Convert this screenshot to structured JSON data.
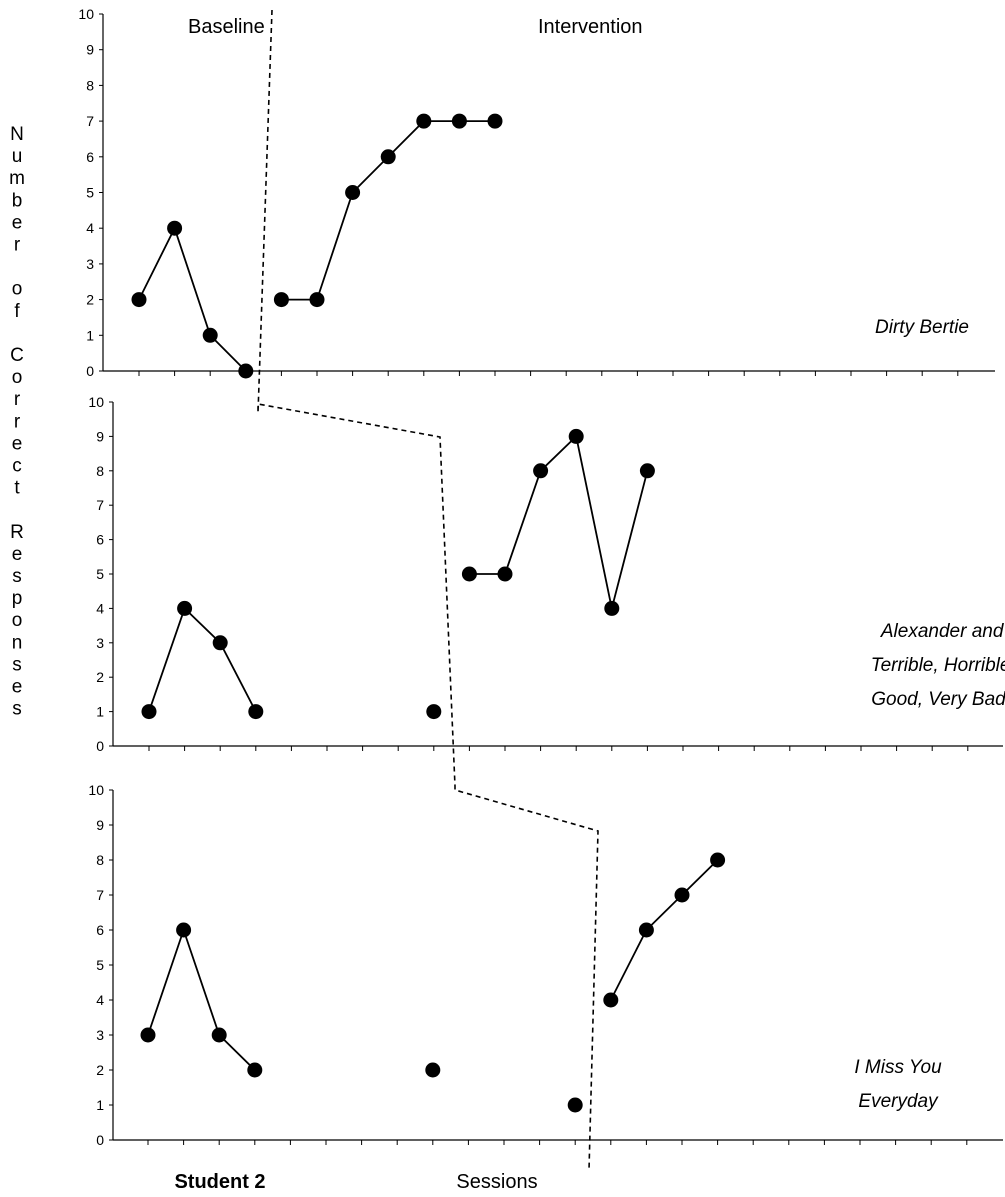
{
  "student_label": "Student 2",
  "xlabel": "Sessions",
  "ylabel": "Number of Correct Responses",
  "phase_labels": {
    "baseline": "Baseline",
    "intervention": "Intervention"
  },
  "chart_data": [
    {
      "type": "line",
      "title": "Dirty Bertie",
      "title_lines": [
        "Dirty Bertie"
      ],
      "ylim": [
        0,
        10
      ],
      "yticks": [
        0,
        1,
        2,
        3,
        4,
        5,
        6,
        7,
        8,
        9,
        10
      ],
      "phase_change_after_session": 4,
      "series": [
        {
          "phase": "baseline",
          "x": [
            1,
            2,
            3,
            4
          ],
          "values": [
            2,
            4,
            1,
            0
          ]
        },
        {
          "phase": "intervention",
          "x": [
            5,
            6,
            7,
            8,
            9,
            10,
            11
          ],
          "values": [
            2,
            2,
            5,
            6,
            7,
            7,
            7
          ]
        }
      ]
    },
    {
      "type": "line",
      "title": "Alexander and the Terrible, Horrible, No Good, Very Bad Day",
      "title_lines": [
        "Alexander and the",
        "Terrible, Horrible, No",
        "Good, Very Bad Day"
      ],
      "ylim": [
        0,
        10
      ],
      "yticks": [
        0,
        1,
        2,
        3,
        4,
        5,
        6,
        7,
        8,
        9,
        10
      ],
      "phase_change_after_session": 9,
      "series": [
        {
          "phase": "baseline",
          "x": [
            1,
            2,
            3,
            4
          ],
          "values": [
            1,
            4,
            3,
            1
          ]
        },
        {
          "phase": "baseline",
          "x": [
            9
          ],
          "values": [
            1
          ]
        },
        {
          "phase": "intervention",
          "x": [
            10,
            11,
            12,
            13,
            14,
            15
          ],
          "values": [
            5,
            5,
            8,
            9,
            4,
            8
          ]
        }
      ]
    },
    {
      "type": "line",
      "title": "I Miss You Everyday",
      "title_lines": [
        "I Miss You",
        "Everyday"
      ],
      "ylim": [
        0,
        10
      ],
      "yticks": [
        0,
        1,
        2,
        3,
        4,
        5,
        6,
        7,
        8,
        9,
        10
      ],
      "phase_change_after_session": 13,
      "series": [
        {
          "phase": "baseline",
          "x": [
            1,
            2,
            3,
            4
          ],
          "values": [
            3,
            6,
            3,
            2
          ]
        },
        {
          "phase": "baseline",
          "x": [
            9
          ],
          "values": [
            2
          ]
        },
        {
          "phase": "baseline",
          "x": [
            13
          ],
          "values": [
            1
          ]
        },
        {
          "phase": "intervention",
          "x": [
            14,
            15,
            16,
            17
          ],
          "values": [
            4,
            6,
            7,
            8
          ]
        }
      ]
    }
  ]
}
